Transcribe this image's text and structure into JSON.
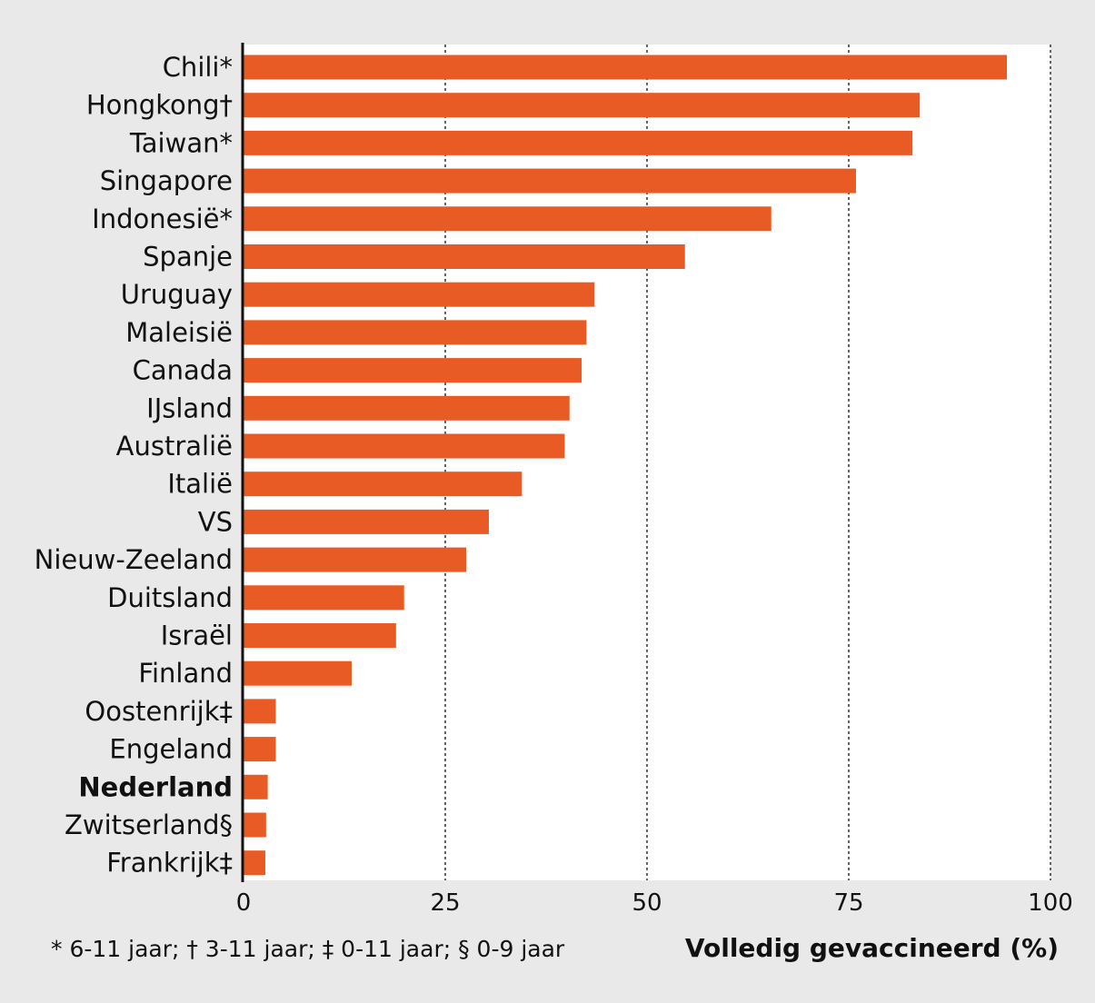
{
  "chart_data": {
    "type": "bar",
    "orientation": "horizontal",
    "categories": [
      "Chili*",
      "Hongkong†",
      "Taiwan*",
      "Singapore",
      "Indonesië*",
      "Spanje",
      "Uruguay",
      "Maleisië",
      "Canada",
      "IJsland",
      "Australië",
      "Italië",
      "VS",
      "Nieuw-Zeeland",
      "Duitsland",
      "Israël",
      "Finland",
      "Oostenrijk‡",
      "Engeland",
      "Nederland",
      "Zwitserland§",
      "Frankrijk‡"
    ],
    "values": [
      94.6,
      83.8,
      82.9,
      75.9,
      65.4,
      54.7,
      43.5,
      42.5,
      41.9,
      40.4,
      39.8,
      34.5,
      30.4,
      27.6,
      19.9,
      18.9,
      13.4,
      4.0,
      4.0,
      3.0,
      2.8,
      2.7
    ],
    "highlight": "Nederland",
    "xlim": [
      0,
      100
    ],
    "xticks": [
      0,
      25,
      50,
      75,
      100
    ],
    "xlabel": "Volledig gevaccineerd (%)",
    "footnote": "* 6-11 jaar; † 3-11 jaar; ‡ 0-11 jaar; § 0-9 jaar",
    "grid": "vertical dotted",
    "bar_color": "#e85b24",
    "plot_background": "#ffffff",
    "page_background": "#e9e9e9"
  }
}
